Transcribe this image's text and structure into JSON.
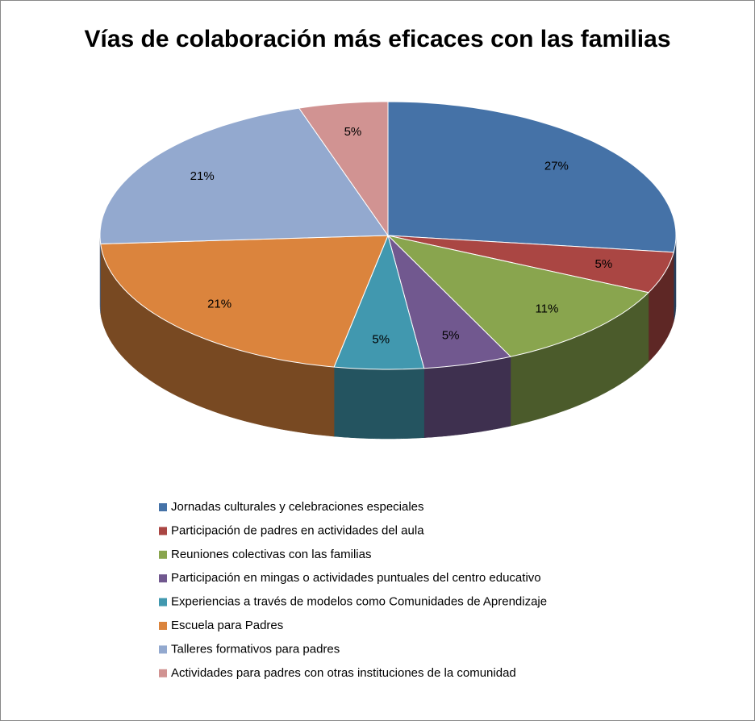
{
  "chart_data": {
    "type": "pie3d",
    "title": "Vías de colaboración más eficaces con las familias",
    "categories": [
      "Jornadas culturales y celebraciones especiales",
      "Participación de padres en actividades del aula",
      "Reuniones colectivas con las familias",
      "Participación en mingas  o actividades puntuales del centro educativo",
      "Experiencias a través de modelos como Comunidades de Aprendizaje",
      "Escuela para Padres",
      "Talleres formativos  para padres",
      "Actividades para padres con otras instituciones de la comunidad"
    ],
    "values": [
      27,
      5,
      11,
      5,
      5,
      21,
      21,
      5
    ],
    "value_labels": [
      "27%",
      "5%",
      "11%",
      "5%",
      "5%",
      "21%",
      "21%",
      "5%"
    ],
    "colors": [
      "#4572a7",
      "#aa4643",
      "#89a54e",
      "#71588f",
      "#4198af",
      "#db843d",
      "#93a9cf",
      "#d19392"
    ],
    "legend": "bottom"
  }
}
